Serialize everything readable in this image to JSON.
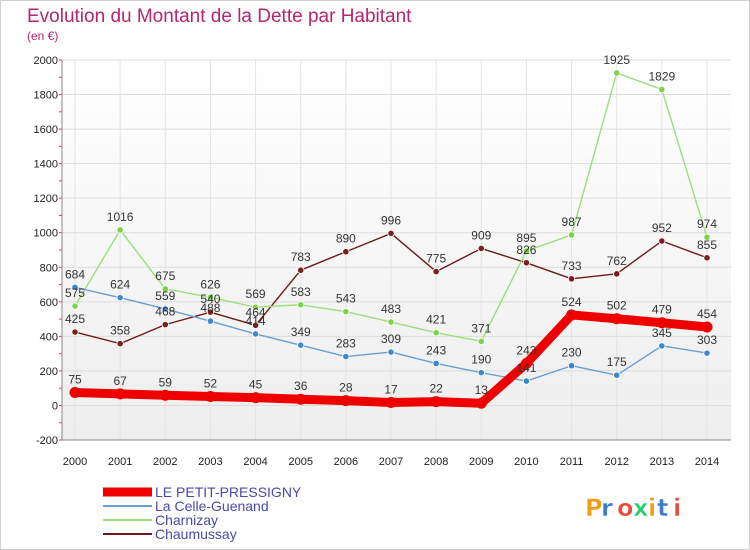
{
  "chart_data": {
    "type": "line",
    "title": "Evolution du Montant de la Dette par Habitant",
    "subtitle": "(en €)",
    "x": [
      "2000",
      "2001",
      "2002",
      "2003",
      "2004",
      "2005",
      "2006",
      "2007",
      "2008",
      "2009",
      "2010",
      "2011",
      "2012",
      "2013",
      "2014"
    ],
    "y_ticks": [
      "-200",
      "0",
      "200",
      "400",
      "600",
      "800",
      "1000",
      "1200",
      "1400",
      "1600",
      "1800",
      "2000"
    ],
    "ylim": [
      -200,
      2000
    ],
    "grid": true,
    "legend_position": "bottom-left",
    "series": [
      {
        "name": "Chaumussay",
        "color": "#6b1a1a",
        "marker": "#7a1e1e",
        "values": [
          425,
          358,
          468,
          540,
          464,
          783,
          890,
          996,
          775,
          909,
          826,
          733,
          762,
          952,
          855
        ],
        "labels": [
          "425",
          "358",
          "468",
          "540",
          "464",
          "783",
          "890",
          "996",
          "775",
          "909",
          "826",
          "733",
          "762",
          "952",
          "855"
        ]
      },
      {
        "name": "Charnizay",
        "color": "#99e07a",
        "marker": "#7ed14a",
        "values": [
          575,
          1016,
          675,
          626,
          569,
          583,
          543,
          483,
          421,
          371,
          895,
          987,
          1925,
          1829,
          974
        ],
        "labels": [
          "575",
          "1016",
          "675",
          "626",
          "569",
          "583",
          "543",
          "483",
          "421",
          "371",
          "895",
          "987",
          "1925",
          "1829",
          "974"
        ]
      },
      {
        "name": "La Celle-Guenand",
        "color": "#6a9fd4",
        "marker": "#3f86d0",
        "values": [
          684,
          624,
          559,
          488,
          414,
          349,
          283,
          309,
          243,
          190,
          141,
          230,
          175,
          345,
          303
        ],
        "labels": [
          "684",
          "624",
          "559",
          "488",
          "414",
          "349",
          "283",
          "309",
          "243",
          "190",
          "141",
          "230",
          "175",
          "345",
          "303"
        ]
      },
      {
        "name": "LE PETIT-PRESSIGNY",
        "color": "#ee0000",
        "marker": "#ee0000",
        "values": [
          75,
          67,
          59,
          52,
          45,
          36,
          28,
          17,
          22,
          13,
          243,
          524,
          502,
          479,
          454
        ],
        "labels": [
          "75",
          "67",
          "59",
          "52",
          "45",
          "36",
          "28",
          "17",
          "22",
          "13",
          "243",
          "524",
          "502",
          "479",
          "454"
        ]
      }
    ],
    "legend_order": [
      "LE PETIT-PRESSIGNY",
      "La Celle-Guenand",
      "Charnizay",
      "Chaumussay"
    ]
  },
  "logo": {
    "text": "Proxiti",
    "colors": [
      "#f39c12",
      "#3a7bd5",
      "#e74c3c",
      "#2ecc71"
    ]
  }
}
